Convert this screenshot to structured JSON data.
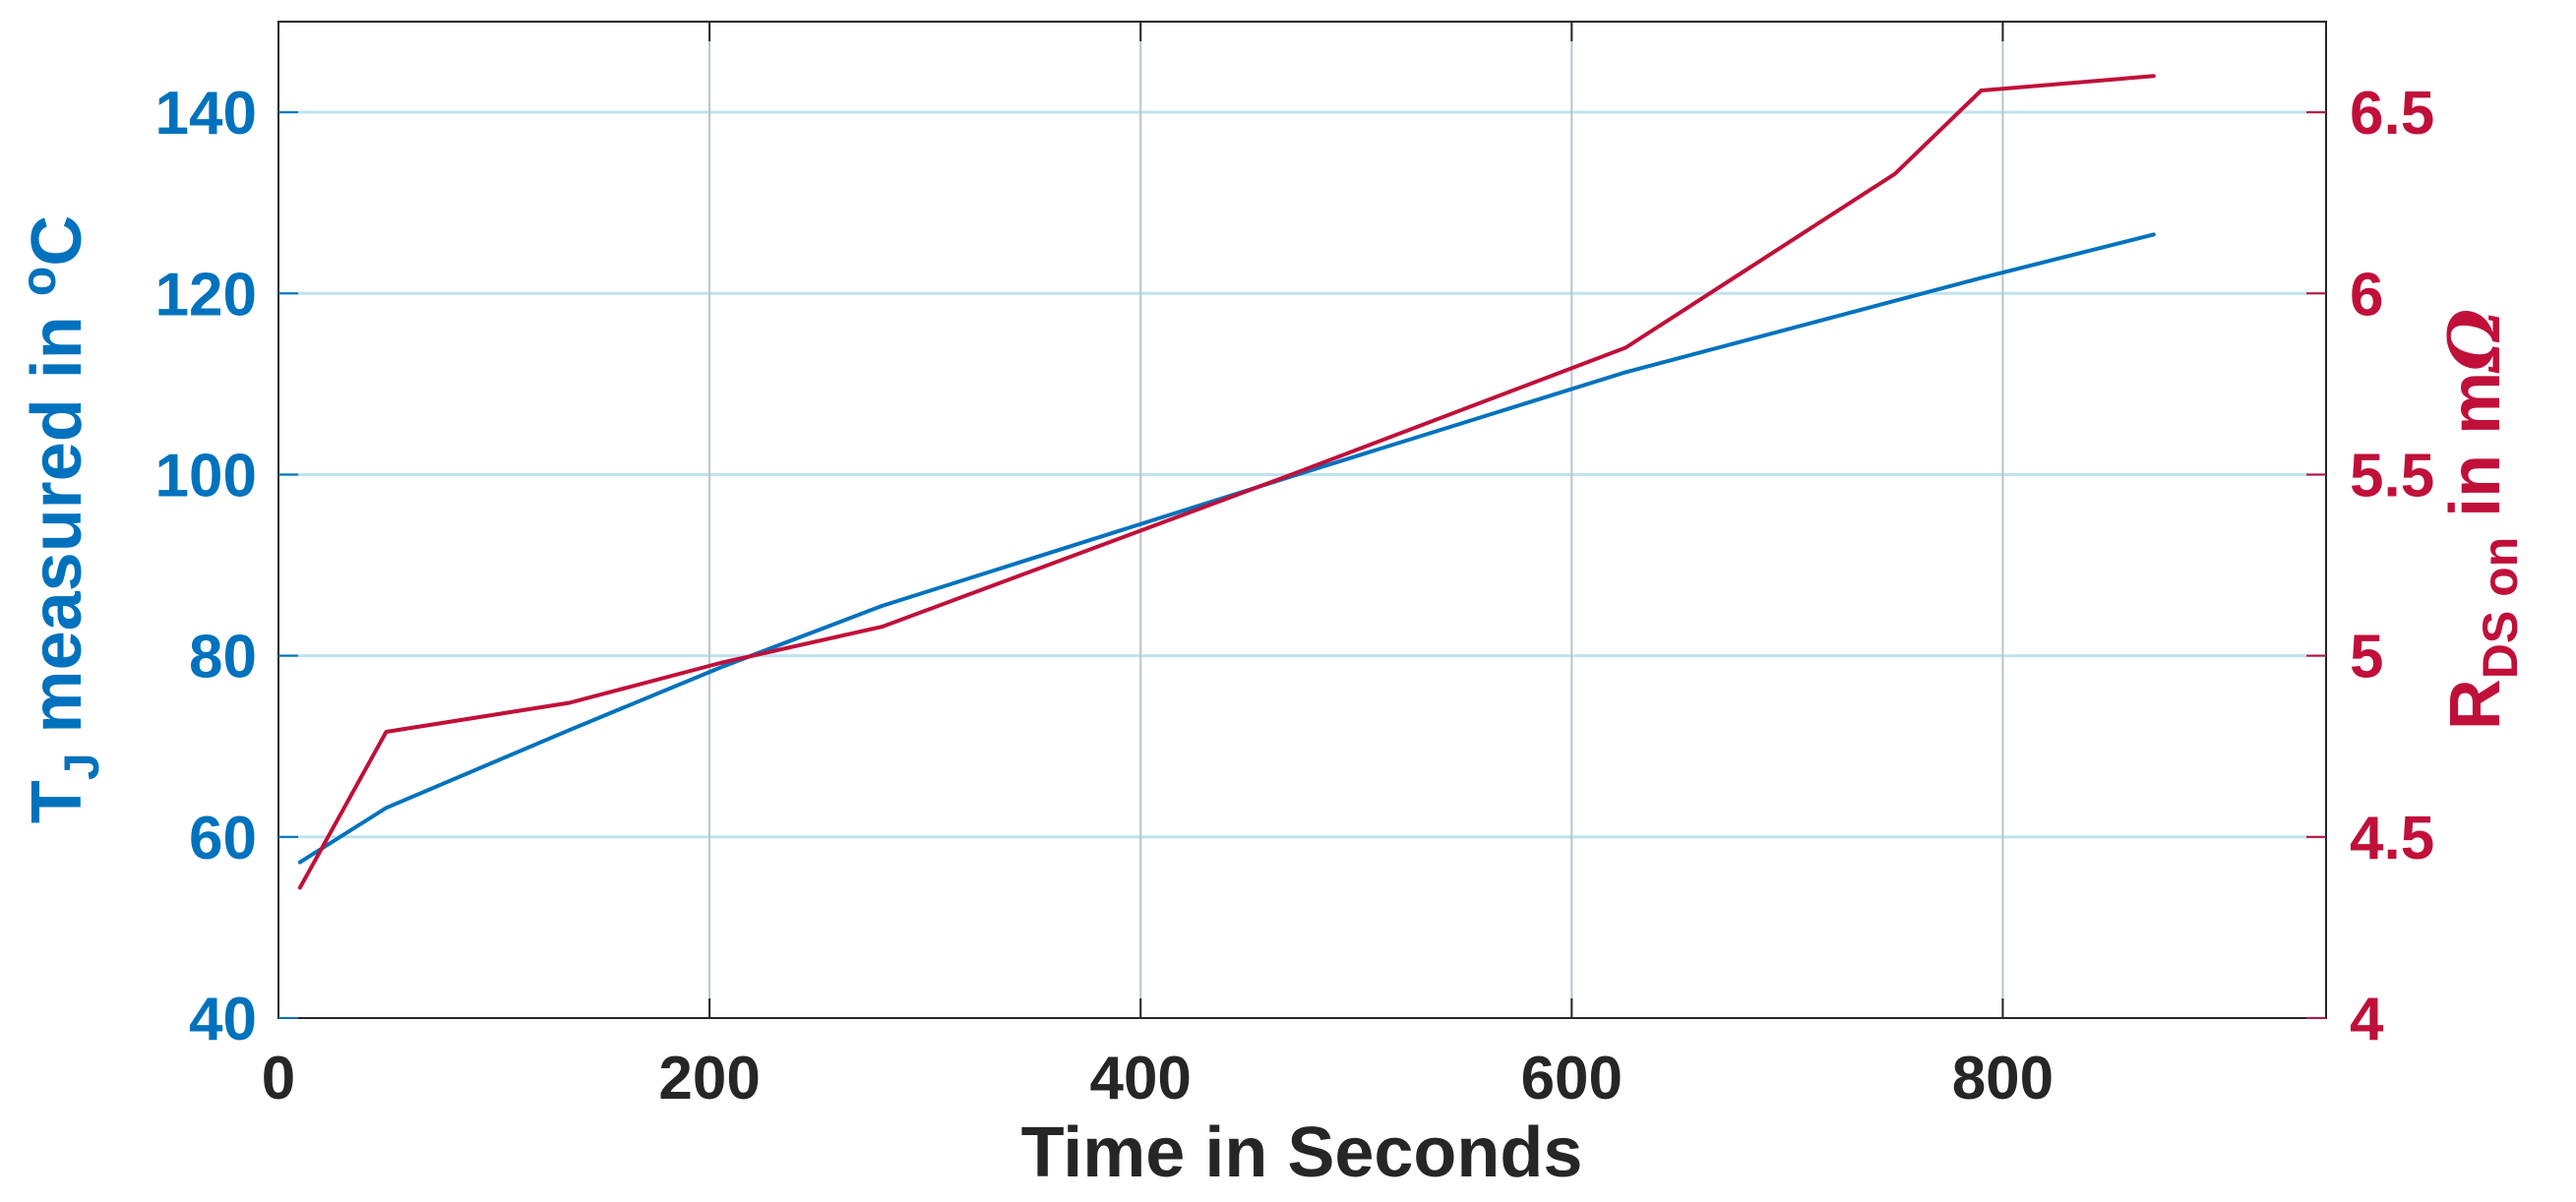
{
  "chart_data": {
    "type": "line",
    "xlabel": "Time in Seconds",
    "ylabel_left": {
      "main": "T",
      "sub": "J",
      "rest": " measured in ",
      "sup": "o",
      "unit": "C"
    },
    "ylabel_right": {
      "main": "R",
      "sub": "DS on",
      "rest": " in m",
      "unit": "Ω"
    },
    "xlim": [
      0,
      950
    ],
    "ylim_left": [
      40,
      150
    ],
    "ylim_right": [
      4,
      6.75
    ],
    "xticks": [
      0,
      200,
      400,
      600,
      800
    ],
    "yticks_left": [
      40,
      60,
      80,
      100,
      120,
      140
    ],
    "yticks_right": [
      4,
      4.5,
      5,
      5.5,
      6,
      6.5
    ],
    "ytick_labels_right": [
      "4",
      "4.5",
      "5",
      "5.5",
      "6",
      "6.5"
    ],
    "grid": true,
    "colors": {
      "left": "#0072BD",
      "right": "#C0103A",
      "text": "#262626",
      "grid_x": "#b8c4cc",
      "grid_y": "#bfe3ee"
    },
    "series": [
      {
        "axis": "left",
        "x": [
          10,
          50,
          135,
          205,
          280,
          470,
          625,
          790,
          870
        ],
        "y": [
          57.2,
          63.2,
          71.8,
          78.7,
          85.5,
          99.8,
          111.3,
          121.7,
          126.5
        ]
      },
      {
        "axis": "right",
        "x": [
          10,
          50,
          135,
          205,
          280,
          470,
          625,
          750,
          790,
          870
        ],
        "y": [
          4.36,
          4.79,
          4.87,
          4.98,
          5.08,
          5.5,
          5.85,
          6.33,
          6.56,
          6.6
        ]
      }
    ]
  }
}
